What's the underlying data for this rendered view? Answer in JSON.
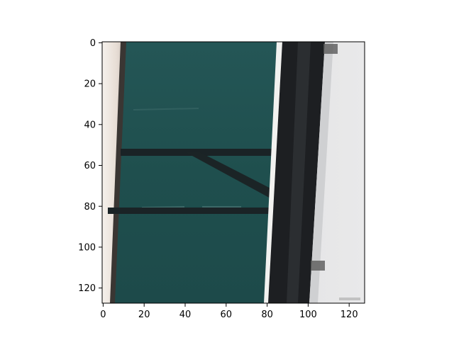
{
  "image_view": {
    "xlim": [
      0,
      128
    ],
    "ylim": [
      128,
      0
    ],
    "x_ticks": [
      0,
      20,
      40,
      60,
      80,
      100,
      120
    ],
    "y_ticks": [
      0,
      20,
      40,
      60,
      80,
      100,
      120
    ],
    "x_tick_labels": [
      "0",
      "20",
      "40",
      "60",
      "80",
      "100",
      "120"
    ],
    "y_tick_labels": [
      "0",
      "20",
      "40",
      "60",
      "80",
      "100",
      "120"
    ],
    "colors": {
      "teal_panel": "#1f4e4d",
      "dark_frame": "#1d1f22",
      "background_light": "#e7e7e8",
      "white_strip": "#f2f2f0"
    }
  }
}
